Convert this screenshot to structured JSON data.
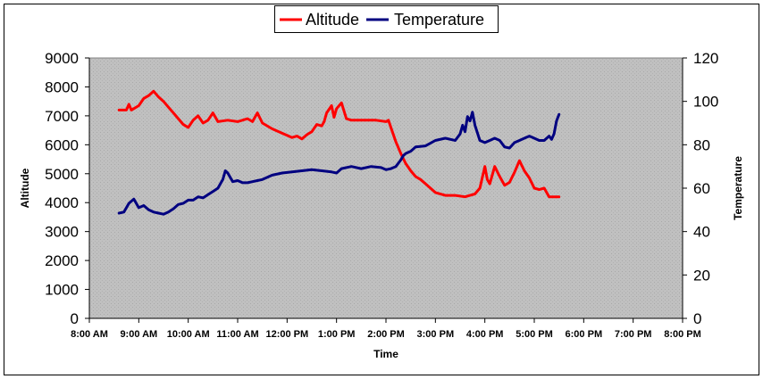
{
  "chart_data": {
    "type": "line",
    "title": "",
    "xlabel": "Time",
    "ylabel_left": "Altitude",
    "ylabel_right": "Temperature",
    "x_ticks": [
      "8:00 AM",
      "9:00 AM",
      "10:00 AM",
      "11:00 AM",
      "12:00 PM",
      "1:00 PM",
      "2:00 PM",
      "3:00 PM",
      "4:00 PM",
      "5:00 PM",
      "6:00 PM",
      "7:00 PM",
      "8:00 PM"
    ],
    "x_range_hours": [
      8,
      20
    ],
    "y_left_range": [
      0,
      9000
    ],
    "y_left_ticks": [
      0,
      1000,
      2000,
      3000,
      4000,
      5000,
      6000,
      7000,
      8000,
      9000
    ],
    "y_right_range": [
      0,
      120
    ],
    "y_right_ticks": [
      0,
      20,
      40,
      60,
      80,
      100,
      120
    ],
    "legend_position": "top-center",
    "series": [
      {
        "name": "Altitude",
        "axis": "left",
        "color": "#ff0000",
        "x_hours": [
          8.6,
          8.75,
          8.8,
          8.85,
          8.9,
          9.0,
          9.1,
          9.2,
          9.3,
          9.4,
          9.5,
          9.6,
          9.7,
          9.8,
          9.9,
          10.0,
          10.1,
          10.2,
          10.3,
          10.4,
          10.5,
          10.6,
          10.8,
          11.0,
          11.2,
          11.3,
          11.4,
          11.5,
          11.7,
          11.9,
          12.1,
          12.2,
          12.3,
          12.4,
          12.5,
          12.6,
          12.7,
          12.75,
          12.8,
          12.9,
          12.95,
          13.0,
          13.1,
          13.2,
          13.3,
          13.6,
          13.8,
          14.0,
          14.05,
          14.1,
          14.2,
          14.3,
          14.4,
          14.5,
          14.6,
          14.7,
          14.8,
          14.9,
          15.0,
          15.2,
          15.4,
          15.6,
          15.7,
          15.8,
          15.9,
          16.0,
          16.05,
          16.1,
          16.2,
          16.3,
          16.4,
          16.5,
          16.6,
          16.7,
          16.8,
          16.9,
          17.0,
          17.1,
          17.2,
          17.3,
          17.5
        ],
        "values": [
          7200,
          7200,
          7400,
          7200,
          7250,
          7350,
          7600,
          7700,
          7850,
          7650,
          7500,
          7300,
          7100,
          6900,
          6700,
          6600,
          6850,
          7000,
          6750,
          6850,
          7100,
          6800,
          6850,
          6800,
          6900,
          6800,
          7100,
          6750,
          6550,
          6400,
          6250,
          6300,
          6200,
          6350,
          6450,
          6700,
          6650,
          6800,
          7100,
          7350,
          6950,
          7250,
          7450,
          6900,
          6850,
          6850,
          6850,
          6800,
          6850,
          6600,
          6100,
          5700,
          5350,
          5100,
          4900,
          4800,
          4650,
          4500,
          4350,
          4250,
          4250,
          4200,
          4250,
          4300,
          4500,
          5250,
          4800,
          4650,
          5250,
          4900,
          4600,
          4700,
          5050,
          5450,
          5100,
          4850,
          4500,
          4450,
          4500,
          4200,
          4200
        ]
      },
      {
        "name": "Temperature",
        "axis": "right",
        "color": "#000080",
        "x_hours": [
          8.6,
          8.7,
          8.8,
          8.9,
          9.0,
          9.1,
          9.2,
          9.3,
          9.4,
          9.5,
          9.6,
          9.7,
          9.8,
          9.9,
          10.0,
          10.1,
          10.2,
          10.3,
          10.4,
          10.5,
          10.6,
          10.7,
          10.75,
          10.8,
          10.9,
          11.0,
          11.1,
          11.2,
          11.3,
          11.4,
          11.5,
          11.7,
          11.9,
          12.1,
          12.3,
          12.5,
          12.7,
          12.9,
          13.0,
          13.1,
          13.3,
          13.5,
          13.7,
          13.9,
          14.0,
          14.1,
          14.2,
          14.3,
          14.35,
          14.4,
          14.5,
          14.6,
          14.8,
          15.0,
          15.2,
          15.4,
          15.5,
          15.55,
          15.6,
          15.65,
          15.7,
          15.75,
          15.8,
          15.9,
          16.0,
          16.1,
          16.2,
          16.3,
          16.4,
          16.5,
          16.6,
          16.7,
          16.8,
          16.9,
          17.0,
          17.1,
          17.2,
          17.3,
          17.35,
          17.4,
          17.45,
          17.5
        ],
        "values": [
          48.5,
          49,
          53,
          55,
          51,
          52,
          50,
          49,
          48.5,
          48,
          49,
          50.5,
          52.5,
          53,
          54.5,
          54.5,
          56,
          55.5,
          57,
          58.5,
          60,
          64,
          68,
          67,
          63,
          63.5,
          62.5,
          62.5,
          63,
          63.5,
          64,
          66,
          67,
          67.5,
          68,
          68.5,
          68,
          67.5,
          67,
          69,
          70,
          69,
          70,
          69.5,
          68.5,
          69,
          70,
          73,
          75,
          76,
          77,
          79,
          79.5,
          82,
          83,
          82,
          85,
          89,
          86,
          93,
          91,
          95,
          89,
          82,
          81,
          82,
          83,
          82,
          79,
          78.5,
          81,
          82,
          83,
          84,
          83,
          82,
          82,
          84,
          82.5,
          85,
          91,
          94
        ]
      }
    ]
  }
}
